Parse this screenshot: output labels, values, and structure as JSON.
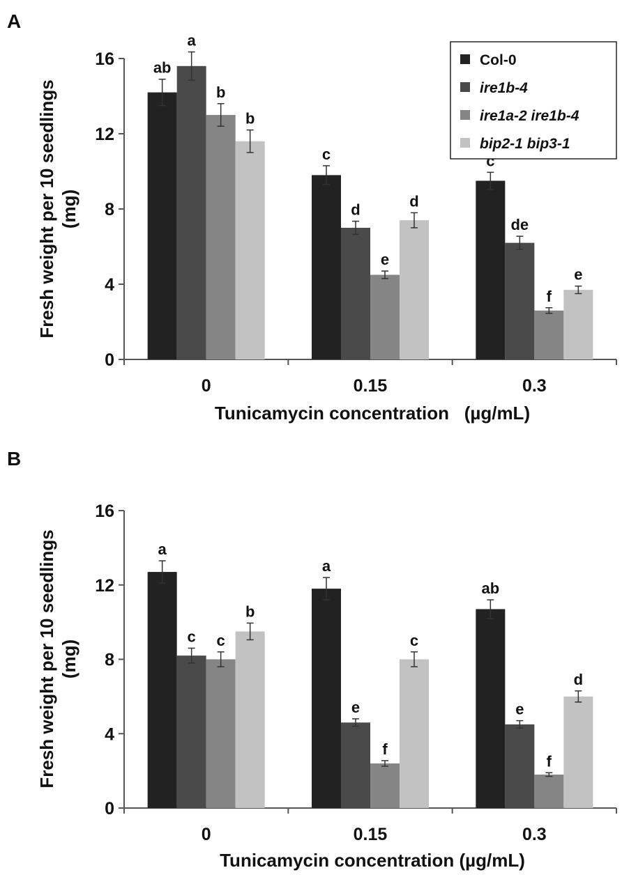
{
  "colors": {
    "series": [
      "#222222",
      "#4a4a4a",
      "#858585",
      "#c2c2c2"
    ],
    "axis": "#555555",
    "errorbar": "#333333"
  },
  "chart_data": [
    {
      "type": "bar",
      "panel_label": "A",
      "categories": [
        "0",
        "0.15",
        "0.3"
      ],
      "xlabel": "Tunicamycin concentration   (µg/mL)",
      "ylabel_line1": "Fresh weight per 10 seedlings",
      "ylabel_line2": "(mg)",
      "ylim": [
        0,
        16
      ],
      "yticks": [
        "0",
        "4",
        "8",
        "12",
        "16"
      ],
      "legend_position": "top-right",
      "legend": [
        {
          "label": "Col-0",
          "italic": false
        },
        {
          "label": "ire1b-4",
          "italic": true
        },
        {
          "label": "ire1a-2 ire1b-4",
          "italic": true
        },
        {
          "label": "bip2-1 bip3-1",
          "italic": true
        }
      ],
      "series": [
        {
          "name": "Col-0",
          "values": [
            14.2,
            9.8,
            9.5
          ],
          "errors": [
            0.7,
            0.5,
            0.45
          ],
          "letters": [
            "ab",
            "c",
            "c"
          ]
        },
        {
          "name": "ire1b-4",
          "values": [
            15.6,
            7.0,
            6.2
          ],
          "errors": [
            0.75,
            0.35,
            0.35
          ],
          "letters": [
            "a",
            "d",
            "de"
          ]
        },
        {
          "name": "ire1a-2 ire1b-4",
          "values": [
            13.0,
            4.5,
            2.6
          ],
          "errors": [
            0.6,
            0.2,
            0.15
          ],
          "letters": [
            "b",
            "e",
            "f"
          ]
        },
        {
          "name": "bip2-1 bip3-1",
          "values": [
            11.6,
            7.4,
            3.7
          ],
          "errors": [
            0.6,
            0.4,
            0.2
          ],
          "letters": [
            "b",
            "d",
            "e"
          ]
        }
      ]
    },
    {
      "type": "bar",
      "panel_label": "B",
      "categories": [
        "0",
        "0.15",
        "0.3"
      ],
      "xlabel": "Tunicamycin concentration (µg/mL)",
      "ylabel_line1": "Fresh weight per 10 seedlings",
      "ylabel_line2": "(mg)",
      "ylim": [
        0,
        16
      ],
      "yticks": [
        "0",
        "4",
        "8",
        "12",
        "16"
      ],
      "legend_position": "none",
      "legend": [],
      "series": [
        {
          "name": "Col-0",
          "values": [
            12.7,
            11.8,
            10.7
          ],
          "errors": [
            0.6,
            0.6,
            0.5
          ],
          "letters": [
            "a",
            "a",
            "ab"
          ]
        },
        {
          "name": "ire1b-4",
          "values": [
            8.2,
            4.6,
            4.5
          ],
          "errors": [
            0.4,
            0.2,
            0.2
          ],
          "letters": [
            "c",
            "e",
            "e"
          ]
        },
        {
          "name": "ire1a-2 ire1b-4",
          "values": [
            8.0,
            2.4,
            1.8
          ],
          "errors": [
            0.4,
            0.15,
            0.1
          ],
          "letters": [
            "c",
            "f",
            "f"
          ]
        },
        {
          "name": "bip2-1 bip3-1",
          "values": [
            9.5,
            8.0,
            6.0
          ],
          "errors": [
            0.45,
            0.4,
            0.3
          ],
          "letters": [
            "b",
            "c",
            "d"
          ]
        }
      ]
    }
  ]
}
